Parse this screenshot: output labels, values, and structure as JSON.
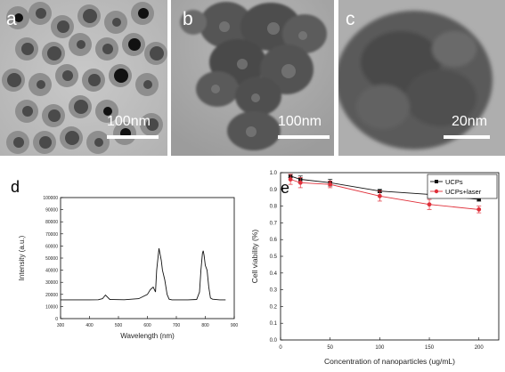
{
  "panels": {
    "a": {
      "label": "a",
      "scale": "100nm"
    },
    "b": {
      "label": "b",
      "scale": "100nm"
    },
    "c": {
      "label": "c",
      "scale": "20nm"
    },
    "d": {
      "label": "d"
    },
    "e": {
      "label": "e"
    }
  },
  "chart_data": [
    {
      "type": "line",
      "panel": "d",
      "xlabel": "Wavelength (nm)",
      "ylabel": "Intensity (a.u.)",
      "xlim": [
        300,
        900
      ],
      "ylim": [
        0,
        100000
      ],
      "xticks": [
        "300",
        "400",
        "500",
        "600",
        "700",
        "800",
        "900"
      ],
      "yticks": [
        "0",
        "10000",
        "20000",
        "30000",
        "40000",
        "50000",
        "60000",
        "70000",
        "80000",
        "90000",
        "100000"
      ],
      "series": [
        {
          "x": [
            300,
            400,
            430,
            445,
            455,
            470,
            520,
            570,
            600,
            610,
            620,
            628,
            632,
            640,
            645,
            648,
            652,
            656,
            660,
            664,
            668,
            675,
            685,
            700,
            740,
            770,
            780,
            785,
            790,
            793,
            796,
            800,
            806,
            812,
            818,
            825,
            850,
            870
          ],
          "y": [
            15500,
            15500,
            15600,
            16500,
            19500,
            15800,
            15600,
            16500,
            20000,
            24000,
            26000,
            22000,
            40000,
            58000,
            52000,
            48000,
            40000,
            36000,
            32000,
            26000,
            20000,
            16000,
            15500,
            15500,
            15500,
            15800,
            22000,
            40000,
            54000,
            56000,
            52000,
            44000,
            40000,
            26000,
            17000,
            16000,
            15500,
            15500
          ]
        }
      ]
    },
    {
      "type": "line",
      "panel": "e",
      "xlabel": "Concentration of nanoparticles (ug/mL)",
      "ylabel": "Cell viability (%)",
      "xlim": [
        0,
        220
      ],
      "ylim": [
        0,
        1.0
      ],
      "xticks": [
        "0",
        "50",
        "100",
        "150",
        "200"
      ],
      "yticks": [
        "0.0",
        "0.1",
        "0.2",
        "0.3",
        "0.4",
        "0.5",
        "0.6",
        "0.7",
        "0.8",
        "0.9",
        "1.0"
      ],
      "legend": "top-right",
      "series": [
        {
          "name": "UCPs",
          "color": "#111111",
          "marker": "square",
          "x": [
            10,
            20,
            50,
            100,
            150,
            200
          ],
          "y": [
            0.98,
            0.96,
            0.94,
            0.89,
            0.87,
            0.84
          ],
          "err": [
            0.01,
            0.02,
            0.02,
            0.01,
            0.02,
            0.01
          ]
        },
        {
          "name": "UCPs+laser",
          "color": "#e0303a",
          "marker": "circle",
          "x": [
            10,
            20,
            50,
            100,
            150,
            200
          ],
          "y": [
            0.96,
            0.94,
            0.93,
            0.86,
            0.81,
            0.78
          ],
          "err": [
            0.03,
            0.03,
            0.02,
            0.03,
            0.03,
            0.02
          ]
        }
      ]
    }
  ]
}
